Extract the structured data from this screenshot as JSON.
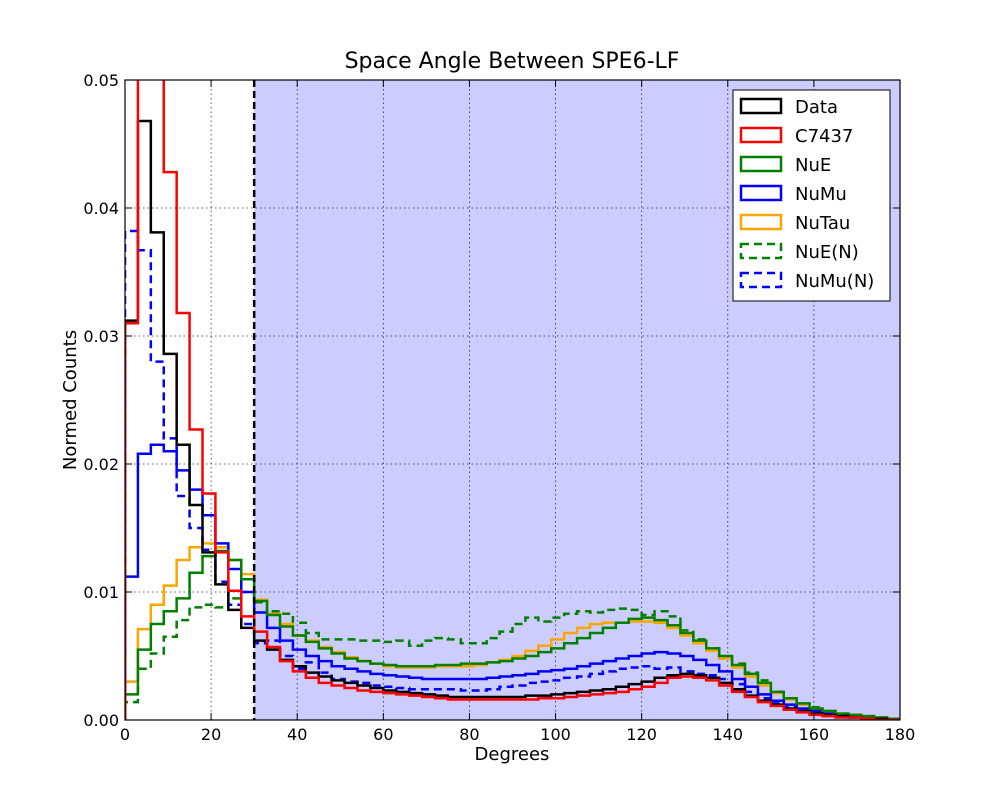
{
  "chart_data": {
    "type": "line",
    "title": "Space Angle Between SPE6-LF",
    "xlabel": "Degrees",
    "ylabel": "Normed Counts",
    "xlim": [
      0,
      180
    ],
    "ylim": [
      0,
      0.05
    ],
    "xticks": [
      0,
      20,
      40,
      60,
      80,
      100,
      120,
      140,
      160,
      180
    ],
    "xtick_labels": [
      "0",
      "20",
      "40",
      "60",
      "80",
      "100",
      "120",
      "140",
      "160",
      "180"
    ],
    "yticks": [
      0.0,
      0.01,
      0.02,
      0.03,
      0.04,
      0.05
    ],
    "ytick_labels": [
      "0.00",
      "0.01",
      "0.02",
      "0.03",
      "0.04",
      "0.05"
    ],
    "grid": true,
    "legend_position": "top-right",
    "cut_line_x": 30,
    "shaded_region": [
      30,
      180
    ],
    "shade_color": "#ccccff",
    "bin_width": 3,
    "series": [
      {
        "name": "Data",
        "color": "#000000",
        "dashed": false,
        "values": [
          0.0312,
          0.0468,
          0.0381,
          0.0286,
          0.0215,
          0.0168,
          0.0131,
          0.0106,
          0.0086,
          0.0072,
          0.0062,
          0.0055,
          0.0047,
          0.0042,
          0.0037,
          0.0034,
          0.0031,
          0.0029,
          0.0027,
          0.0025,
          0.0023,
          0.0022,
          0.0021,
          0.002,
          0.0019,
          0.0018,
          0.0018,
          0.0018,
          0.0018,
          0.0018,
          0.0018,
          0.0019,
          0.0019,
          0.002,
          0.0021,
          0.0022,
          0.0023,
          0.0024,
          0.0026,
          0.0028,
          0.003,
          0.0033,
          0.0035,
          0.0036,
          0.0035,
          0.0033,
          0.0029,
          0.0024,
          0.0019,
          0.0015,
          0.0012,
          0.0009,
          0.0007,
          0.0005,
          0.0004,
          0.0003,
          0.0002,
          0.0001,
          0.0001,
          0.0
        ]
      },
      {
        "name": "C7437",
        "color": "#ff0000",
        "dashed": false,
        "values": [
          0.031,
          0.056,
          0.052,
          0.0428,
          0.0318,
          0.0227,
          0.0177,
          0.0131,
          0.0101,
          0.0081,
          0.0069,
          0.0057,
          0.0046,
          0.0038,
          0.0033,
          0.0029,
          0.0027,
          0.0025,
          0.0023,
          0.0022,
          0.0021,
          0.002,
          0.0019,
          0.0018,
          0.0017,
          0.0016,
          0.0016,
          0.0016,
          0.0016,
          0.0016,
          0.0016,
          0.0016,
          0.0017,
          0.0017,
          0.0018,
          0.0019,
          0.002,
          0.0021,
          0.0022,
          0.0024,
          0.0026,
          0.0029,
          0.0033,
          0.0034,
          0.0033,
          0.0031,
          0.0027,
          0.0022,
          0.0018,
          0.0014,
          0.0011,
          0.0008,
          0.0006,
          0.0004,
          0.0003,
          0.0002,
          0.0002,
          0.0001,
          0.0,
          0.0
        ]
      },
      {
        "name": "NuE",
        "color": "#008000",
        "dashed": false,
        "values": [
          0.002,
          0.0055,
          0.0075,
          0.0085,
          0.0095,
          0.0115,
          0.0128,
          0.0132,
          0.0125,
          0.011,
          0.0093,
          0.0082,
          0.0073,
          0.0066,
          0.0061,
          0.0056,
          0.0052,
          0.0048,
          0.0046,
          0.0044,
          0.0043,
          0.0042,
          0.0042,
          0.0042,
          0.0043,
          0.0043,
          0.0044,
          0.0044,
          0.0045,
          0.0046,
          0.0048,
          0.005,
          0.0053,
          0.0056,
          0.006,
          0.0064,
          0.0068,
          0.0072,
          0.0076,
          0.0079,
          0.008,
          0.0078,
          0.0074,
          0.0068,
          0.0062,
          0.0056,
          0.005,
          0.0043,
          0.0036,
          0.0029,
          0.0022,
          0.0017,
          0.0013,
          0.0009,
          0.0007,
          0.0005,
          0.0004,
          0.0003,
          0.0002,
          0.0001
        ]
      },
      {
        "name": "NuMu",
        "color": "#0000ff",
        "dashed": false,
        "values": [
          0.0112,
          0.0208,
          0.0215,
          0.021,
          0.0195,
          0.018,
          0.016,
          0.0138,
          0.0118,
          0.01,
          0.0084,
          0.0072,
          0.0062,
          0.0055,
          0.005,
          0.0046,
          0.0042,
          0.004,
          0.0038,
          0.0036,
          0.0035,
          0.0034,
          0.0033,
          0.0032,
          0.0032,
          0.0032,
          0.0032,
          0.0032,
          0.0033,
          0.0034,
          0.0035,
          0.0036,
          0.0038,
          0.0039,
          0.004,
          0.0042,
          0.0044,
          0.0046,
          0.0048,
          0.005,
          0.0052,
          0.0053,
          0.0052,
          0.005,
          0.0047,
          0.0043,
          0.0038,
          0.0032,
          0.0026,
          0.002,
          0.0015,
          0.0012,
          0.0009,
          0.0007,
          0.0005,
          0.0004,
          0.0003,
          0.0002,
          0.0001,
          0.0
        ]
      },
      {
        "name": "NuTau",
        "color": "#ffa500",
        "dashed": false,
        "values": [
          0.003,
          0.0071,
          0.009,
          0.0105,
          0.0125,
          0.0135,
          0.0138,
          0.0135,
          0.0125,
          0.0114,
          0.0094,
          0.0083,
          0.0075,
          0.0066,
          0.0062,
          0.0057,
          0.0053,
          0.0049,
          0.0046,
          0.0044,
          0.0042,
          0.0041,
          0.0041,
          0.0041,
          0.0042,
          0.0042,
          0.0042,
          0.0043,
          0.0045,
          0.0047,
          0.005,
          0.0054,
          0.0058,
          0.0063,
          0.0068,
          0.0072,
          0.0075,
          0.0076,
          0.0076,
          0.0077,
          0.0077,
          0.0076,
          0.0072,
          0.0066,
          0.006,
          0.0054,
          0.0048,
          0.0041,
          0.0034,
          0.0027,
          0.0021,
          0.0016,
          0.0012,
          0.0009,
          0.0007,
          0.0005,
          0.0004,
          0.0003,
          0.0002,
          0.0001
        ]
      },
      {
        "name": "NuE(N)",
        "color": "#008000",
        "dashed": true,
        "values": [
          0.0014,
          0.004,
          0.0052,
          0.0065,
          0.0078,
          0.0088,
          0.009,
          0.0088,
          0.0095,
          0.01,
          0.0092,
          0.0085,
          0.0083,
          0.0076,
          0.0068,
          0.0063,
          0.0063,
          0.0063,
          0.0062,
          0.0062,
          0.0061,
          0.0062,
          0.0058,
          0.0062,
          0.0064,
          0.0063,
          0.006,
          0.006,
          0.0064,
          0.0069,
          0.0075,
          0.008,
          0.0077,
          0.008,
          0.0083,
          0.0085,
          0.0084,
          0.0086,
          0.0087,
          0.0086,
          0.0082,
          0.0085,
          0.0081,
          0.007,
          0.0063,
          0.0056,
          0.0048,
          0.0044,
          0.0037,
          0.0031,
          0.0022,
          0.0017,
          0.0012,
          0.001,
          0.0007,
          0.0005,
          0.0004,
          0.0003,
          0.0002,
          0.0001
        ]
      },
      {
        "name": "NuMu(N)",
        "color": "#0000ff",
        "dashed": true,
        "values": [
          0.0382,
          0.0367,
          0.028,
          0.022,
          0.0175,
          0.015,
          0.0133,
          0.0108,
          0.009,
          0.0075,
          0.006,
          0.0062,
          0.005,
          0.004,
          0.0045,
          0.0037,
          0.0032,
          0.003,
          0.0029,
          0.0027,
          0.0026,
          0.0025,
          0.0024,
          0.0024,
          0.0024,
          0.0024,
          0.0023,
          0.0023,
          0.0024,
          0.0026,
          0.0027,
          0.0029,
          0.003,
          0.0031,
          0.0033,
          0.0034,
          0.0036,
          0.0038,
          0.004,
          0.0041,
          0.0042,
          0.004,
          0.0041,
          0.0038,
          0.0036,
          0.0035,
          0.0032,
          0.0028,
          0.0022,
          0.0017,
          0.0013,
          0.001,
          0.0007,
          0.0006,
          0.0004,
          0.0003,
          0.0002,
          0.0002,
          0.0001,
          0.0
        ]
      }
    ]
  }
}
